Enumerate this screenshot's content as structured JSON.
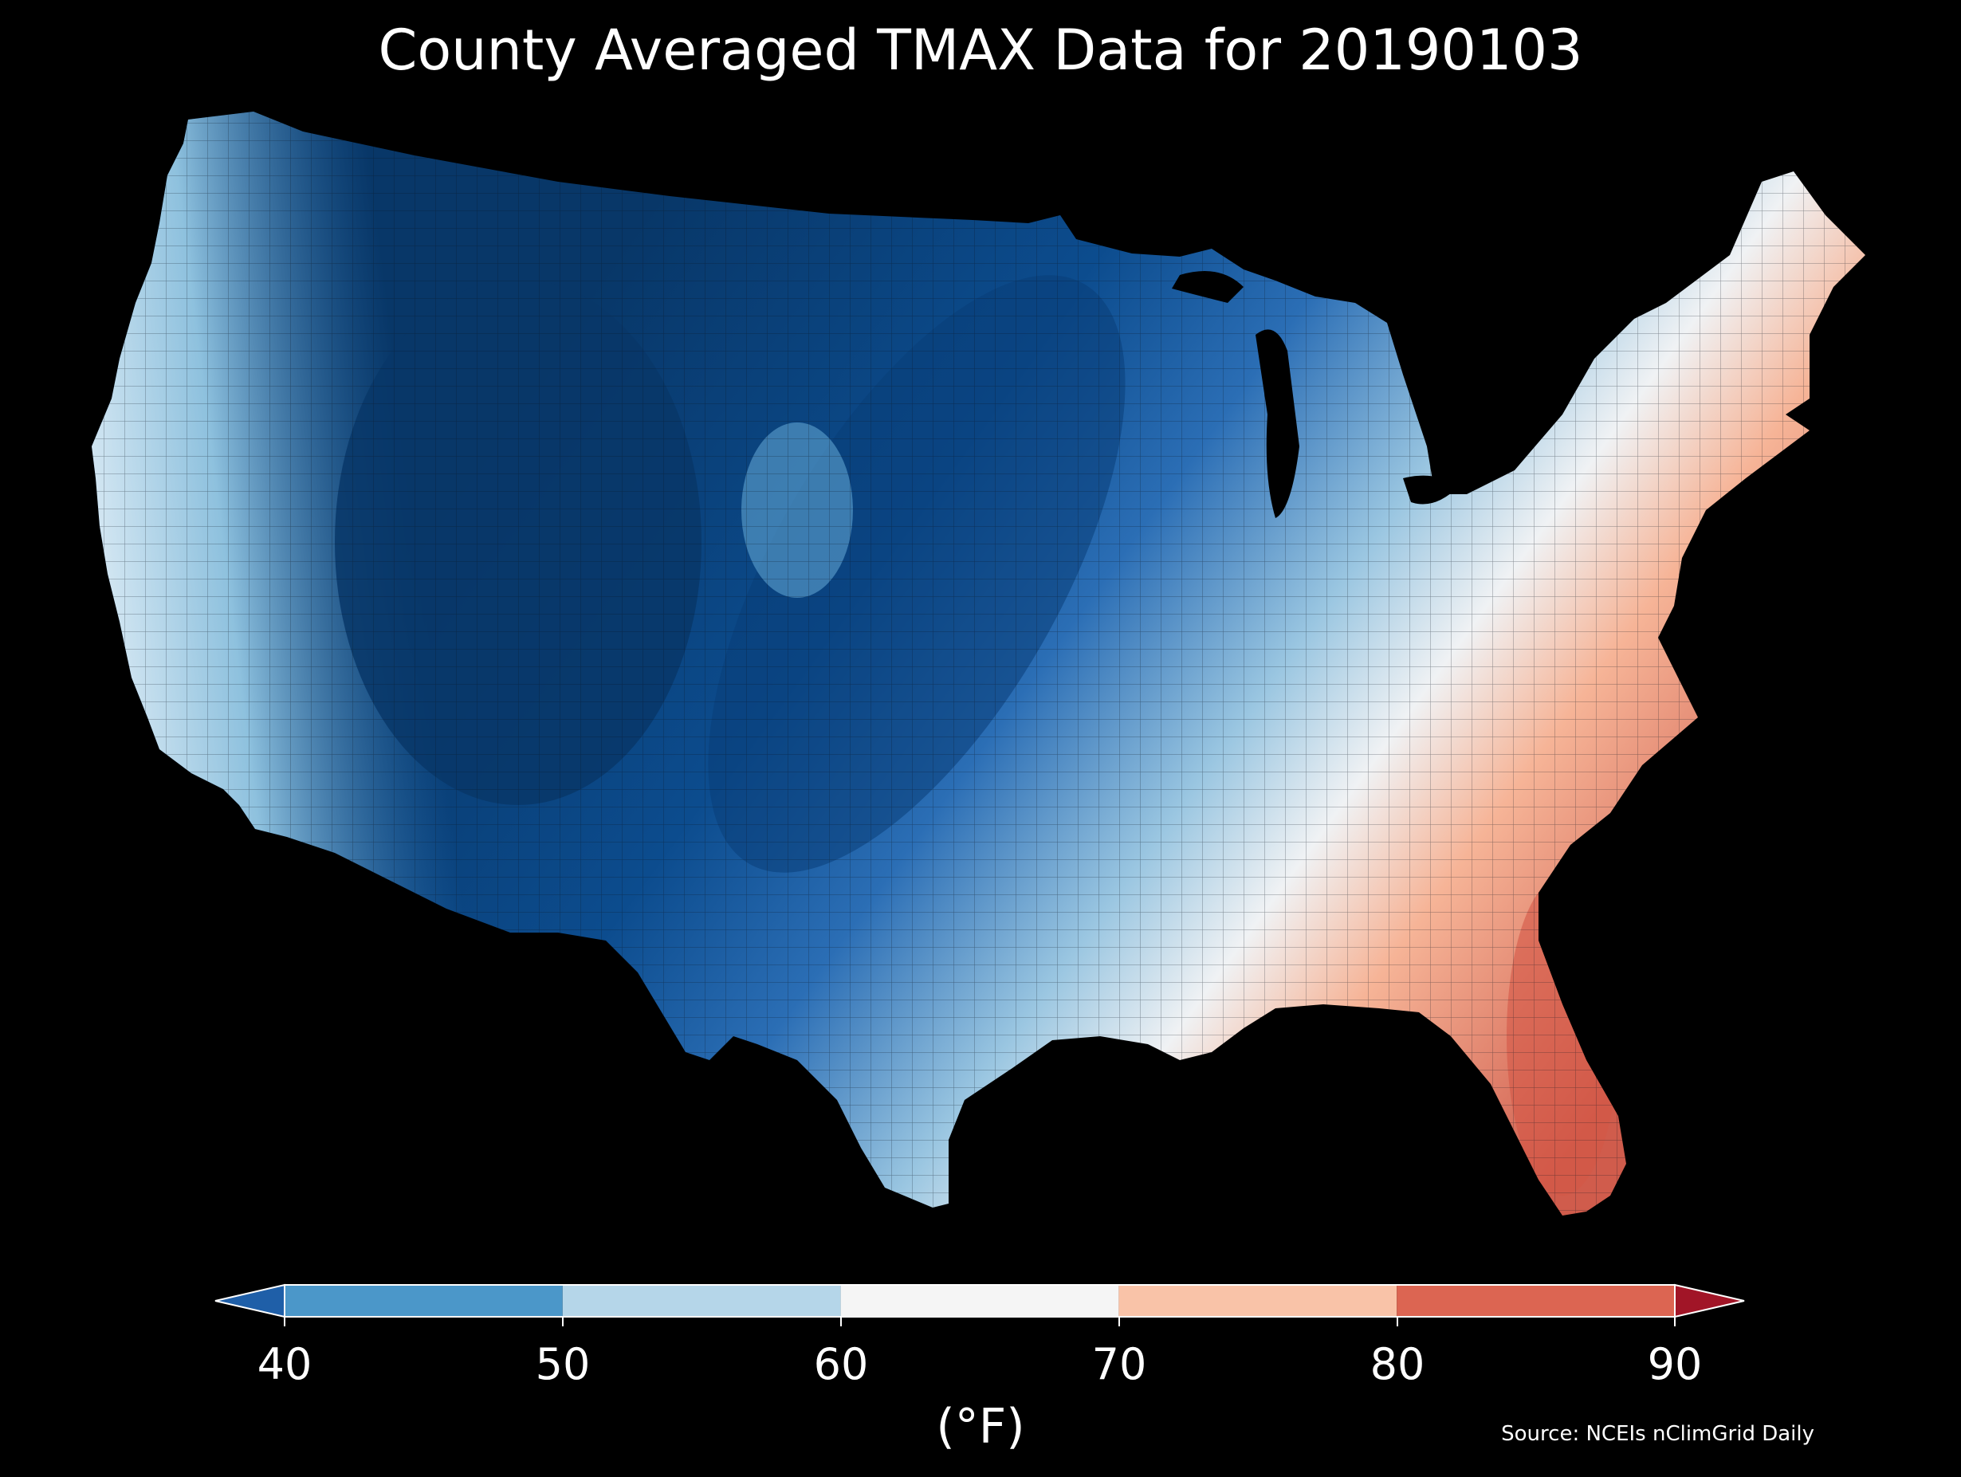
{
  "map": {
    "title": "County Averaged TMAX Data for 20190103",
    "source": "Source: NCEIs nClimGrid Daily",
    "variable": "TMAX",
    "date": "20190103",
    "region": "contiguous-us-counties",
    "colorbar": {
      "unit": "(°F)",
      "ticks": [
        "40",
        "50",
        "60",
        "70",
        "80",
        "90"
      ],
      "bins": [
        {
          "range": [
            40,
            50
          ],
          "color": "#4b97c9"
        },
        {
          "range": [
            50,
            60
          ],
          "color": "#b5d6e9"
        },
        {
          "range": [
            60,
            70
          ],
          "color": "#f5f5f5"
        },
        {
          "range": [
            70,
            80
          ],
          "color": "#f9c3a8"
        },
        {
          "range": [
            80,
            90
          ],
          "color": "#dc6552"
        }
      ],
      "under_color": "#1f5fa8",
      "over_color": "#a11527",
      "extend": "both"
    }
  }
}
